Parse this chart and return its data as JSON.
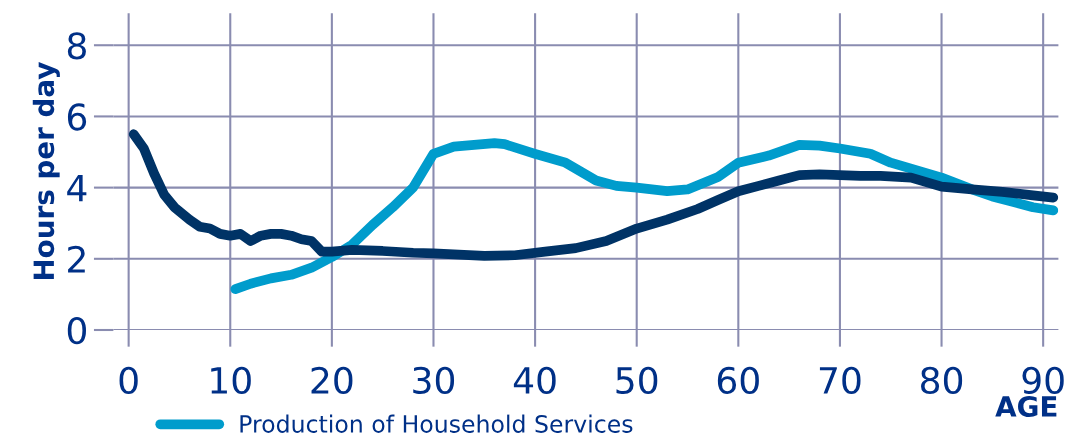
{
  "chart_data": {
    "type": "line",
    "xlabel": "AGE",
    "ylabel": "Hours per day",
    "xlim": [
      -1.5,
      91.5
    ],
    "ylim": [
      0,
      8.9
    ],
    "xticks": [
      0,
      10,
      20,
      30,
      40,
      50,
      60,
      70,
      80,
      90
    ],
    "yticks": [
      0,
      2,
      4,
      6,
      8
    ],
    "grid": true,
    "legend": "bottom",
    "line_style": "solid",
    "marker": "none",
    "series": [
      {
        "name": "Production of Household Services",
        "color": "#009ccc",
        "x": [
          10.5,
          12,
          14,
          16,
          18,
          20,
          22,
          24,
          26,
          28,
          30,
          32,
          34,
          36,
          37,
          40,
          43,
          46,
          48,
          50,
          53,
          55,
          58,
          60,
          63,
          66,
          68,
          70,
          73,
          75,
          78,
          80,
          83,
          85,
          87,
          89,
          91
        ],
        "values": [
          1.15,
          1.3,
          1.45,
          1.55,
          1.75,
          2.05,
          2.4,
          2.95,
          3.45,
          4.0,
          4.95,
          5.15,
          5.2,
          5.25,
          5.22,
          4.95,
          4.7,
          4.2,
          4.05,
          4.0,
          3.9,
          3.95,
          4.3,
          4.7,
          4.9,
          5.2,
          5.18,
          5.1,
          4.95,
          4.7,
          4.45,
          4.28,
          3.95,
          3.75,
          3.6,
          3.45,
          3.36
        ]
      },
      {
        "color": "#003366",
        "x": [
          0.5,
          1.5,
          2.5,
          3.5,
          4.5,
          6,
          7,
          8,
          9,
          10,
          11,
          12,
          13,
          14,
          15,
          16,
          17,
          18,
          19,
          20,
          22,
          25,
          28,
          30,
          35,
          38,
          41,
          44,
          47,
          50,
          53,
          56,
          58,
          60,
          62,
          64,
          66,
          68,
          72,
          74,
          77,
          80,
          83,
          86,
          89,
          91
        ],
        "values": [
          5.5,
          5.1,
          4.4,
          3.8,
          3.45,
          3.1,
          2.9,
          2.85,
          2.7,
          2.65,
          2.7,
          2.5,
          2.65,
          2.7,
          2.7,
          2.65,
          2.55,
          2.5,
          2.2,
          2.2,
          2.25,
          2.22,
          2.17,
          2.15,
          2.08,
          2.1,
          2.2,
          2.3,
          2.5,
          2.85,
          3.1,
          3.4,
          3.65,
          3.9,
          4.05,
          4.2,
          4.35,
          4.37,
          4.33,
          4.33,
          4.28,
          4.03,
          3.95,
          3.88,
          3.78,
          3.72
        ]
      }
    ]
  }
}
